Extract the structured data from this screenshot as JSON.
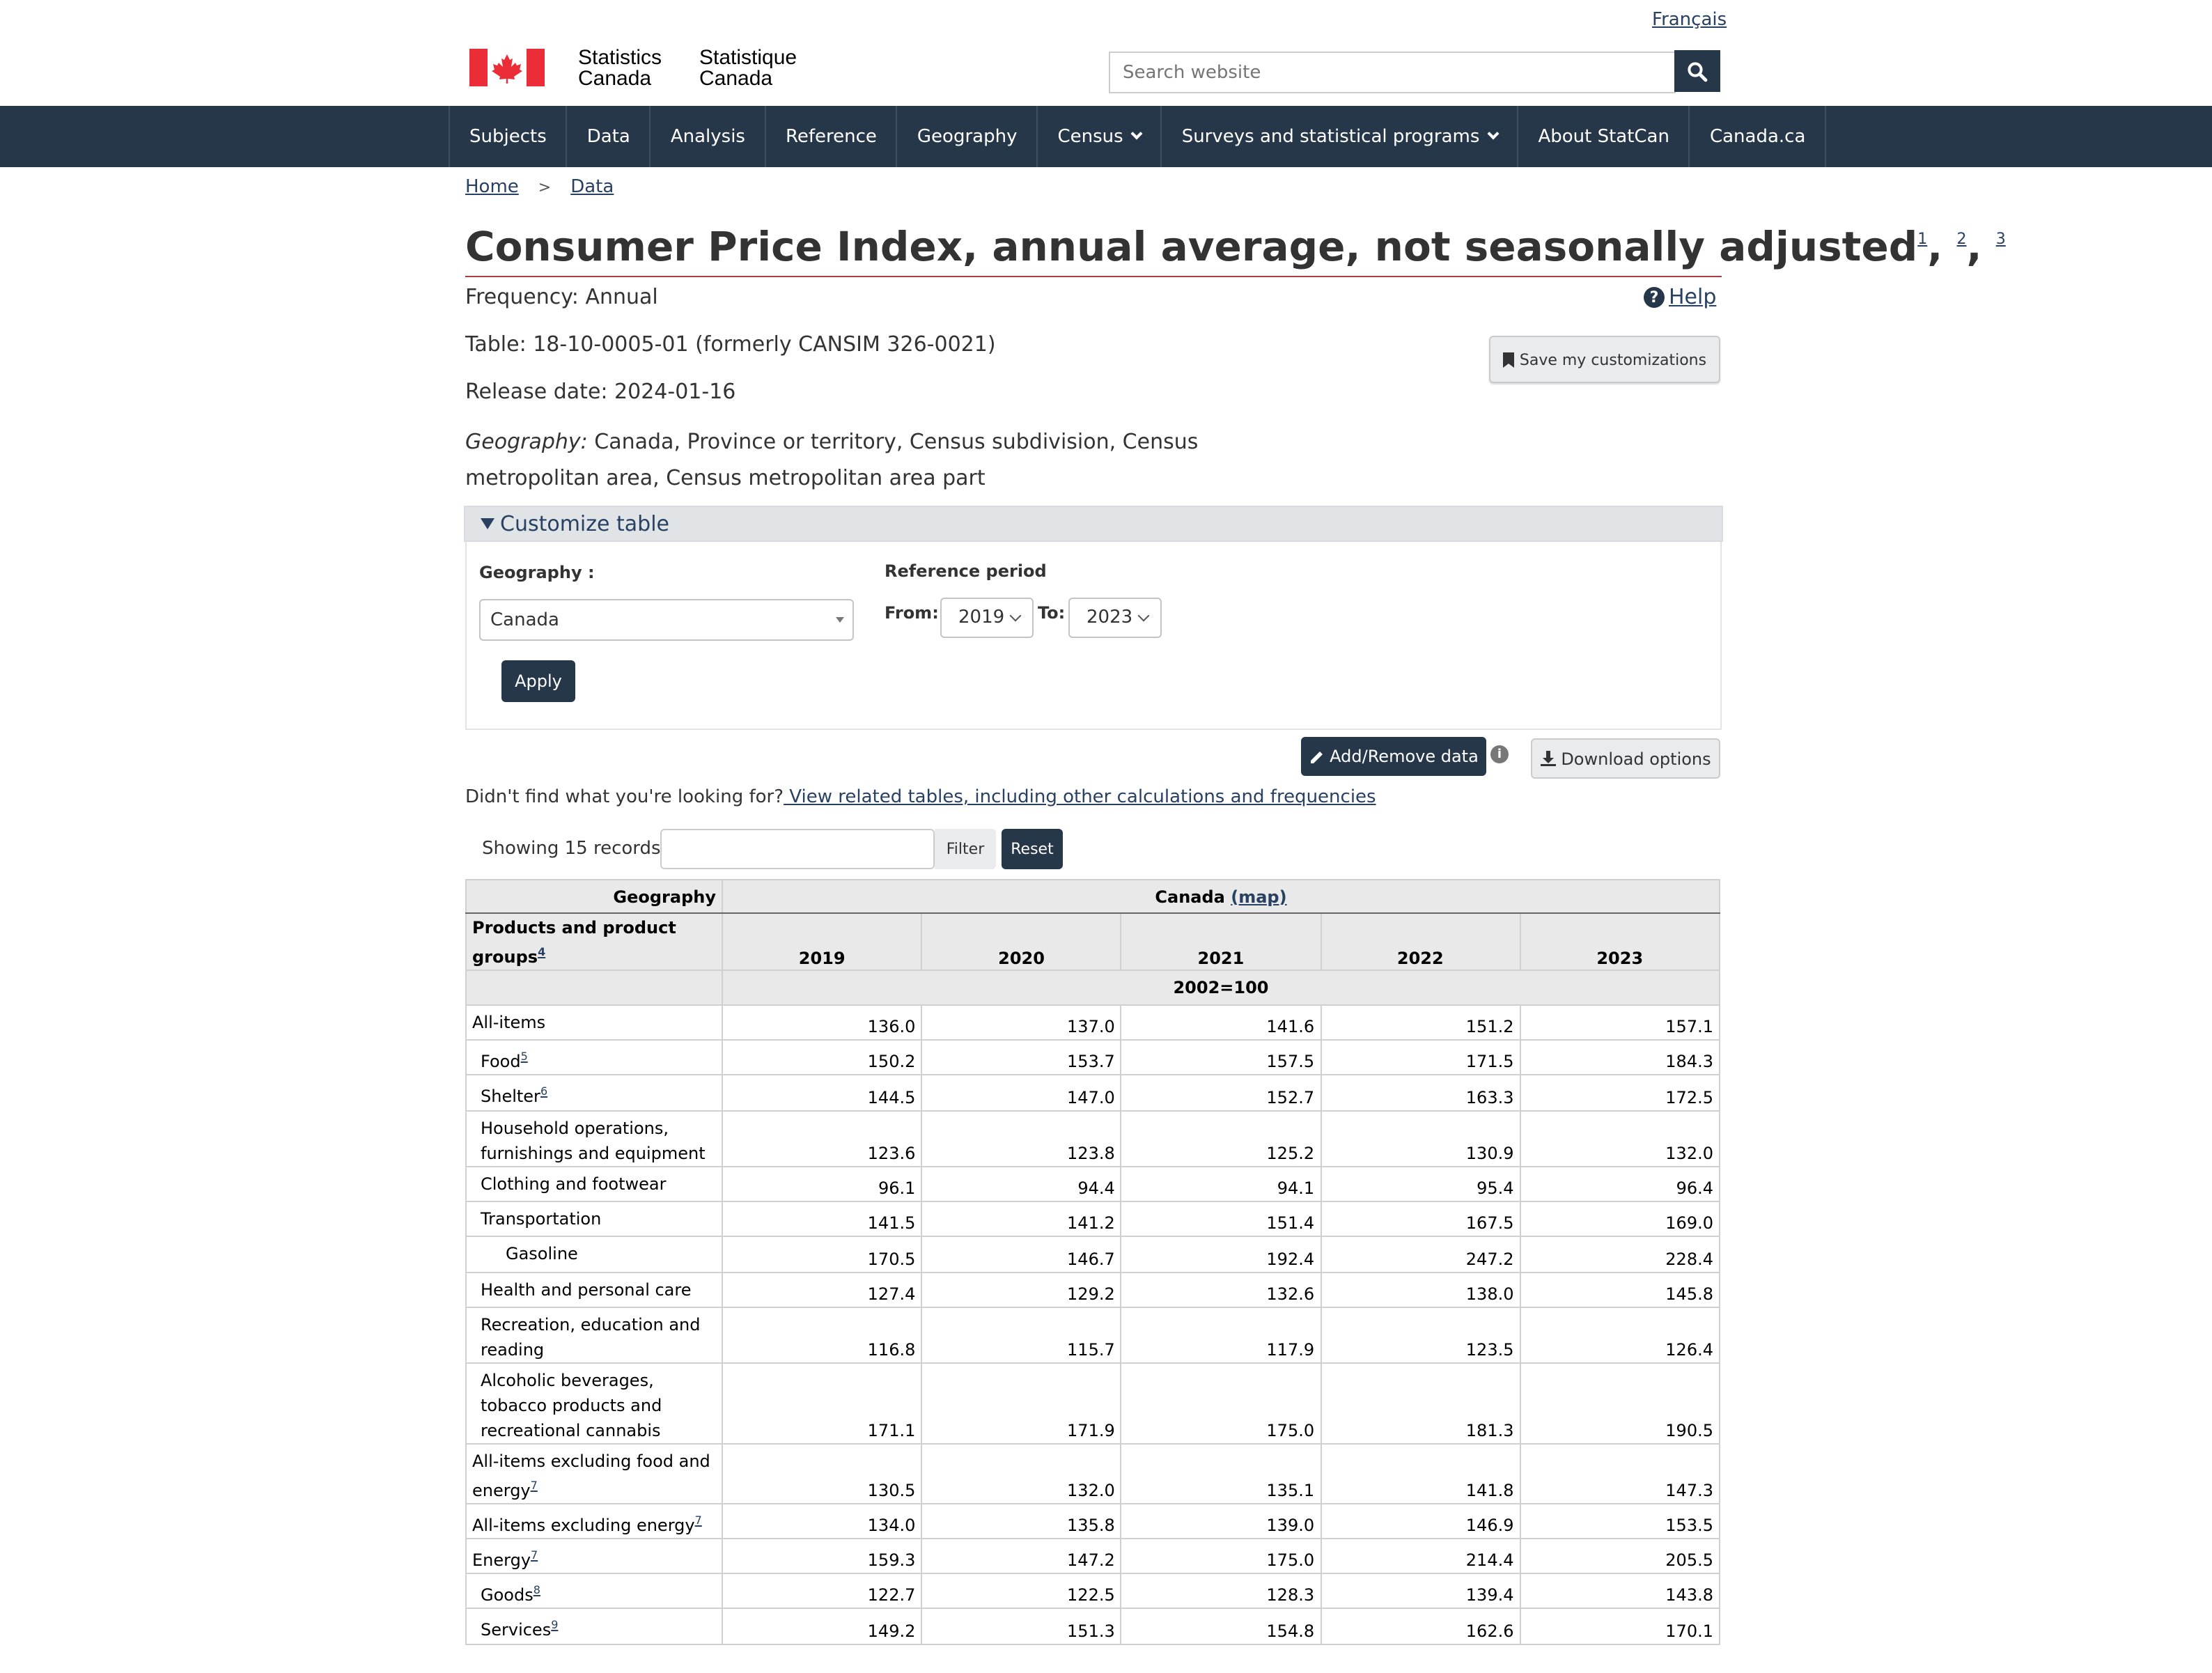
{
  "header": {
    "language_link": "Français",
    "signature_en": [
      "Statistics",
      "Canada"
    ],
    "signature_fr": [
      "Statistique",
      "Canada"
    ],
    "search_placeholder": "Search website"
  },
  "menu": [
    {
      "label": "Subjects",
      "dropdown": false
    },
    {
      "label": "Data",
      "dropdown": false
    },
    {
      "label": "Analysis",
      "dropdown": false
    },
    {
      "label": "Reference",
      "dropdown": false
    },
    {
      "label": "Geography",
      "dropdown": false
    },
    {
      "label": "Census",
      "dropdown": true
    },
    {
      "label": "Surveys and statistical programs",
      "dropdown": true
    },
    {
      "label": "About StatCan",
      "dropdown": false
    },
    {
      "label": "Canada.ca",
      "dropdown": false
    }
  ],
  "breadcrumb": {
    "home": "Home",
    "separator": ">",
    "data": "Data"
  },
  "page": {
    "title": "Consumer Price Index, annual average, not seasonally adjusted",
    "title_notes": [
      "1",
      "2",
      "3"
    ],
    "frequency": "Frequency: Annual",
    "table_id": "Table: 18-10-0005-01 (formerly CANSIM 326-0021)",
    "release_date": "Release date: 2024-01-16",
    "geography_label": "Geography:",
    "geography_value": " Canada, Province or territory, Census subdivision, Census metropolitan area, Census metropolitan area part",
    "help": "Help",
    "save_button": "Save my customizations"
  },
  "customize": {
    "heading": "Customize table",
    "geography_label": "Geography :",
    "geography_value": "Canada",
    "reference_label": "Reference period",
    "from_label": "From:",
    "from_value": "2019",
    "to_label": "To:",
    "to_value": "2023",
    "apply": "Apply"
  },
  "actions": {
    "add_remove": "Add/Remove data",
    "info": "i",
    "download": "Download options",
    "didnt_find": "Didn't find what you're looking for?",
    "related_link": " View related tables, including other calculations and frequencies"
  },
  "filter": {
    "showing": "Showing 15 records",
    "filter_btn": "Filter",
    "reset_btn": "Reset"
  },
  "table": {
    "geo_header": "Geography",
    "geo_value": "Canada",
    "map_link": "(map)",
    "products_header": "Products and product groups",
    "products_note": "4",
    "years": [
      "2019",
      "2020",
      "2021",
      "2022",
      "2023"
    ],
    "unit": "2002=100",
    "rows": [
      {
        "label": "All-items",
        "note": "",
        "indent": 0,
        "values": [
          "136.0",
          "137.0",
          "141.6",
          "151.2",
          "157.1"
        ]
      },
      {
        "label": "Food",
        "note": "5",
        "indent": 1,
        "values": [
          "150.2",
          "153.7",
          "157.5",
          "171.5",
          "184.3"
        ]
      },
      {
        "label": "Shelter",
        "note": "6",
        "indent": 1,
        "values": [
          "144.5",
          "147.0",
          "152.7",
          "163.3",
          "172.5"
        ]
      },
      {
        "label": "Household operations, furnishings and equipment",
        "note": "",
        "indent": 1,
        "values": [
          "123.6",
          "123.8",
          "125.2",
          "130.9",
          "132.0"
        ]
      },
      {
        "label": "Clothing and footwear",
        "note": "",
        "indent": 1,
        "values": [
          "96.1",
          "94.4",
          "94.1",
          "95.4",
          "96.4"
        ]
      },
      {
        "label": "Transportation",
        "note": "",
        "indent": 1,
        "values": [
          "141.5",
          "141.2",
          "151.4",
          "167.5",
          "169.0"
        ]
      },
      {
        "label": "Gasoline",
        "note": "",
        "indent": 2,
        "values": [
          "170.5",
          "146.7",
          "192.4",
          "247.2",
          "228.4"
        ]
      },
      {
        "label": "Health and personal care",
        "note": "",
        "indent": 1,
        "values": [
          "127.4",
          "129.2",
          "132.6",
          "138.0",
          "145.8"
        ]
      },
      {
        "label": "Recreation, education and reading",
        "note": "",
        "indent": 1,
        "values": [
          "116.8",
          "115.7",
          "117.9",
          "123.5",
          "126.4"
        ]
      },
      {
        "label": "Alcoholic beverages, tobacco products and recreational cannabis",
        "note": "",
        "indent": 1,
        "values": [
          "171.1",
          "171.9",
          "175.0",
          "181.3",
          "190.5"
        ]
      },
      {
        "label": "All-items excluding food and energy",
        "note": "7",
        "indent": 0,
        "values": [
          "130.5",
          "132.0",
          "135.1",
          "141.8",
          "147.3"
        ]
      },
      {
        "label": "All-items excluding energy",
        "note": "7",
        "indent": 0,
        "values": [
          "134.0",
          "135.8",
          "139.0",
          "146.9",
          "153.5"
        ]
      },
      {
        "label": "Energy",
        "note": "7",
        "indent": 0,
        "values": [
          "159.3",
          "147.2",
          "175.0",
          "214.4",
          "205.5"
        ]
      },
      {
        "label": "Goods",
        "note": "8",
        "indent": 1,
        "values": [
          "122.7",
          "122.5",
          "128.3",
          "139.4",
          "143.8"
        ]
      },
      {
        "label": "Services",
        "note": "9",
        "indent": 1,
        "values": [
          "149.2",
          "151.3",
          "154.8",
          "162.6",
          "170.1"
        ]
      }
    ]
  },
  "colors": {
    "navy": "#26374a",
    "link": "#284162",
    "flag_red": "#eb2d37",
    "title_rule": "#af3c43"
  },
  "icons": [
    "search-icon",
    "question-circle-icon",
    "bookmark-icon",
    "caret-down-icon",
    "pencil-icon",
    "info-icon",
    "download-icon",
    "chevron-down-icon"
  ]
}
